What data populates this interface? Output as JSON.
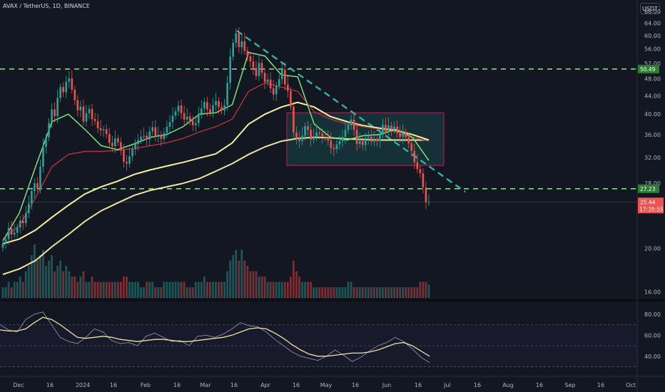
{
  "header": {
    "symbol_line": "AVAX / TetherUS, 1D, BINANCE",
    "currency_button": "USDT"
  },
  "colors": {
    "bull": "#26a69a",
    "bear": "#ef5350",
    "ema_fast": "#7ee27c",
    "ema_mid": "#b2323c",
    "ma_slow": "#f5f0a0",
    "trend": "#2fb5a3",
    "level": "#8bd48b",
    "rsi": "#f0e0a8"
  },
  "chart_data": [
    {
      "type": "candlestick",
      "title": "AVAX / TetherUS, 1D, BINANCE",
      "y_axis": {
        "ticks": [
          "68.00",
          "64.00",
          "60.00",
          "56.00",
          "52.00",
          "48.00",
          "44.00",
          "40.00",
          "36.00",
          "32.00",
          "28.00",
          "20.00",
          "16.00"
        ],
        "scale": "log",
        "ylim": [
          15.5,
          70
        ]
      },
      "x_axis": {
        "ticks": [
          "Dec",
          "16",
          "2024",
          "16",
          "Feb",
          "16",
          "Mar",
          "16",
          "Apr",
          "16",
          "May",
          "16",
          "Jun",
          "16",
          "Jul",
          "16",
          "Aug",
          "16",
          "Sep",
          "16",
          "Oct"
        ]
      },
      "close_series": [
        20.5,
        21.0,
        22.2,
        21.5,
        21.7,
        22.3,
        23.1,
        22.8,
        24.0,
        25.2,
        26.9,
        28.0,
        27.3,
        30.5,
        33.8,
        35.5,
        38.2,
        41.0,
        39.6,
        43.5,
        46.0,
        44.8,
        47.3,
        48.1,
        45.4,
        43.0,
        40.8,
        41.6,
        38.5,
        40.2,
        41.1,
        39.0,
        38.6,
        37.2,
        36.8,
        37.0,
        36.1,
        34.5,
        33.9,
        35.3,
        34.6,
        33.2,
        31.3,
        31.0,
        32.2,
        33.4,
        34.3,
        35.0,
        35.6,
        35.8,
        35.1,
        36.6,
        37.4,
        35.6,
        36.0,
        35.2,
        36.3,
        37.5,
        38.4,
        39.7,
        40.6,
        41.8,
        40.2,
        38.9,
        39.5,
        38.7,
        37.8,
        38.2,
        40.1,
        41.2,
        42.6,
        41.0,
        40.3,
        41.9,
        42.8,
        41.5,
        40.8,
        41.9,
        47.0,
        53.8,
        57.8,
        60.7,
        56.5,
        58.3,
        55.5,
        53.9,
        52.5,
        50.8,
        48.7,
        52.1,
        49.5,
        47.2,
        47.8,
        45.7,
        44.3,
        46.3,
        47.9,
        50.3,
        46.6,
        45.1,
        41.6,
        36.4,
        35.3,
        34.8,
        35.8,
        37.6,
        36.9,
        35.1,
        35.7,
        36.4,
        36.2,
        35.6,
        35.5,
        34.9,
        33.6,
        33.4,
        34.2,
        34.8,
        35.6,
        36.9,
        37.8,
        38.9,
        36.9,
        34.3,
        34.8,
        34.1,
        35.4,
        35.6,
        34.7,
        35.1,
        34.9,
        36.0,
        37.9,
        36.5,
        37.7,
        37.0,
        37.5,
        36.3,
        35.6,
        36.4,
        35.5,
        34.4,
        33.1,
        31.2,
        30.1,
        29.5,
        27.4,
        25.4,
        25.44
      ],
      "volume_relative": [
        0.2,
        0.2,
        0.3,
        0.2,
        0.3,
        0.3,
        0.4,
        0.3,
        0.5,
        0.6,
        0.8,
        1.0,
        0.7,
        0.8,
        0.9,
        0.6,
        0.7,
        0.8,
        0.5,
        0.6,
        0.7,
        0.5,
        0.6,
        0.5,
        0.4,
        0.4,
        0.3,
        0.4,
        0.5,
        0.3,
        0.3,
        0.4,
        0.3,
        0.3,
        0.3,
        0.3,
        0.3,
        0.3,
        0.3,
        0.3,
        0.3,
        0.3,
        0.4,
        0.4,
        0.3,
        0.3,
        0.3,
        0.3,
        0.2,
        0.2,
        0.3,
        0.3,
        0.3,
        0.2,
        0.2,
        0.2,
        0.3,
        0.3,
        0.3,
        0.3,
        0.3,
        0.3,
        0.3,
        0.3,
        0.2,
        0.2,
        0.2,
        0.3,
        0.3,
        0.3,
        0.4,
        0.3,
        0.3,
        0.3,
        0.3,
        0.3,
        0.3,
        0.3,
        0.5,
        0.7,
        0.8,
        0.9,
        0.7,
        0.9,
        0.7,
        0.6,
        0.5,
        0.5,
        0.5,
        0.4,
        0.4,
        0.4,
        0.3,
        0.3,
        0.3,
        0.3,
        0.3,
        0.3,
        0.3,
        0.3,
        0.4,
        0.7,
        0.5,
        0.4,
        0.3,
        0.3,
        0.3,
        0.3,
        0.2,
        0.2,
        0.2,
        0.2,
        0.2,
        0.2,
        0.2,
        0.2,
        0.2,
        0.2,
        0.2,
        0.2,
        0.3,
        0.3,
        0.2,
        0.2,
        0.2,
        0.2,
        0.2,
        0.2,
        0.2,
        0.2,
        0.2,
        0.2,
        0.2,
        0.2,
        0.2,
        0.2,
        0.2,
        0.2,
        0.2,
        0.2,
        0.2,
        0.2,
        0.2,
        0.2,
        0.2,
        0.3,
        0.3,
        0.3,
        0.25
      ],
      "moving_average_approx": {
        "ema_fast": [
          20.8,
          24.0,
          30.5,
          38.5,
          40.0,
          37.0,
          34.0,
          33.3,
          34.3,
          35.5,
          36.0,
          37.5,
          40.0,
          40.3,
          42.0,
          55.0,
          54.0,
          49.0,
          48.5,
          38.0,
          35.5,
          35.0,
          35.8,
          36.0,
          37.0,
          35.5,
          31.5
        ],
        "ema_mid": [
          21.0,
          22.5,
          26.0,
          30.5,
          32.5,
          33.0,
          33.0,
          33.2,
          33.5,
          34.0,
          34.5,
          35.3,
          36.5,
          37.5,
          39.0,
          45.0,
          47.0,
          46.0,
          45.0,
          40.5,
          39.0,
          38.0,
          37.5,
          37.0,
          36.5,
          35.5,
          34.8
        ],
        "ma_slow": [
          20.5,
          21.0,
          22.0,
          23.5,
          25.0,
          26.5,
          27.5,
          28.3,
          29.3,
          30.0,
          30.6,
          31.2,
          31.9,
          32.6,
          34.5,
          38.0,
          40.0,
          41.5,
          42.5,
          41.5,
          39.5,
          38.5,
          37.7,
          37.2,
          36.8,
          36.0,
          35.0
        ],
        "ma_slow_2": [
          17.5,
          18.0,
          18.8,
          20.2,
          21.5,
          23.0,
          24.3,
          25.3,
          26.3,
          27.0,
          27.5,
          28.0,
          28.7,
          29.8,
          31.0,
          32.5,
          33.8,
          34.8,
          35.3,
          35.5,
          35.4,
          35.2,
          35.1,
          35.0,
          35.0,
          35.0,
          35.0
        ]
      },
      "annotations": {
        "descending_trendline": "from March high (~61) toward ~27 in late June",
        "range_box": {
          "top": 40.3,
          "bottom": 30.7
        },
        "horizontal_levels": [
          50.49,
          27.23
        ]
      },
      "price_badges": [
        "50.49",
        "27.23",
        "25.44",
        "17:35:55"
      ]
    },
    {
      "type": "line",
      "y_axis": {
        "ticks": [
          "80.00",
          "60.00",
          "40.00"
        ],
        "ylim": [
          25,
          90
        ]
      },
      "bands": [
        70,
        50,
        30
      ],
      "series_a": [
        70,
        65,
        63,
        75,
        80,
        82,
        70,
        58,
        54,
        52,
        58,
        66,
        63,
        55,
        52,
        53,
        50,
        59,
        62,
        58,
        54,
        55,
        50,
        59,
        60,
        58,
        61,
        66,
        72,
        69,
        68,
        63,
        56,
        50,
        44,
        40,
        38,
        36,
        40,
        46,
        41,
        35,
        39,
        45,
        50,
        53,
        58,
        54,
        47,
        39,
        34
      ],
      "series_b": [
        65,
        64,
        64,
        66,
        72,
        77,
        75,
        70,
        64,
        58,
        57,
        58,
        59,
        58,
        56,
        55,
        54,
        55,
        56,
        56,
        55,
        54,
        54,
        55,
        56,
        57,
        58,
        60,
        63,
        66,
        67,
        66,
        62,
        57,
        51,
        46,
        42,
        40,
        40,
        41,
        42,
        43,
        43,
        44,
        46,
        49,
        52,
        53,
        50,
        45,
        40
      ]
    }
  ]
}
